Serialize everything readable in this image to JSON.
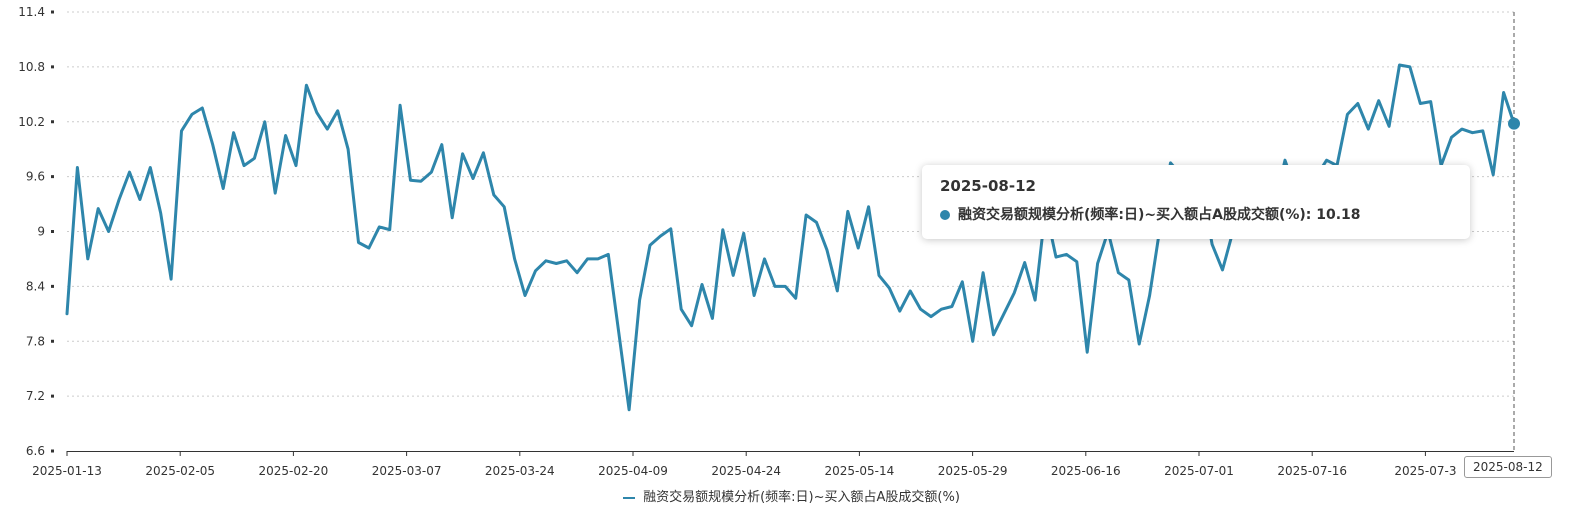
{
  "colors": {
    "series": "#2e86ab",
    "grid": "#cccccc",
    "axis": "#333333"
  },
  "chart_data": {
    "type": "line",
    "title": "",
    "xlabel": "",
    "ylabel": "",
    "ylim": [
      6.6,
      11.4
    ],
    "yticks": [
      "6.6",
      "7.2",
      "7.8",
      "8.4",
      "9",
      "9.6",
      "10.2",
      "10.8",
      "11.4"
    ],
    "xticks": [
      "2025-01-13",
      "2025-02-05",
      "2025-02-20",
      "2025-03-07",
      "2025-03-24",
      "2025-04-09",
      "2025-04-24",
      "2025-05-14",
      "2025-05-29",
      "2025-06-16",
      "2025-07-01",
      "2025-07-16",
      "2025-07-3"
    ],
    "grid": true,
    "legend_position": "bottom",
    "series": [
      {
        "name": "融资交易额规模分析(频率:日)~买入额占A股成交额(%)",
        "values": [
          8.1,
          9.7,
          8.7,
          9.25,
          9.0,
          9.35,
          9.65,
          9.35,
          9.7,
          9.2,
          8.48,
          10.1,
          10.28,
          10.35,
          9.95,
          9.47,
          10.08,
          9.72,
          9.8,
          10.2,
          9.42,
          10.05,
          9.72,
          10.6,
          10.3,
          10.12,
          10.32,
          9.9,
          8.88,
          8.82,
          9.05,
          9.02,
          10.38,
          9.56,
          9.55,
          9.65,
          9.95,
          9.15,
          9.85,
          9.58,
          9.86,
          9.4,
          9.27,
          8.7,
          8.3,
          8.57,
          8.68,
          8.65,
          8.68,
          8.55,
          8.7,
          8.7,
          8.75,
          7.9,
          7.05,
          8.25,
          8.85,
          8.95,
          9.03,
          8.15,
          7.97,
          8.42,
          8.05,
          9.02,
          8.52,
          8.98,
          8.3,
          8.7,
          8.4,
          8.4,
          8.27,
          9.18,
          9.1,
          8.8,
          8.35,
          9.22,
          8.82,
          9.27,
          8.52,
          8.38,
          8.13,
          8.35,
          8.15,
          8.07,
          8.15,
          8.18,
          8.45,
          7.8,
          8.55,
          7.87,
          8.1,
          8.33,
          8.66,
          8.25,
          9.25,
          8.72,
          8.75,
          8.67,
          7.68,
          8.65,
          9.0,
          8.55,
          8.47,
          7.77,
          8.3,
          9.05,
          9.75,
          9.62,
          9.65,
          9.5,
          8.86,
          8.58,
          9.0,
          9.15,
          9.23,
          9.42,
          9.3,
          9.78,
          9.45,
          9.7,
          9.6,
          9.78,
          9.72,
          10.28,
          10.4,
          10.12,
          10.43,
          10.15,
          10.82,
          10.8,
          10.4,
          10.42,
          9.72,
          10.03,
          10.12,
          10.08,
          10.1,
          9.62,
          10.52,
          10.18
        ]
      }
    ],
    "tooltip": {
      "date": "2025-08-12",
      "label": "融资交易额规模分析(频率:日)~买入额占A股成交额(%): 10.18"
    },
    "axis_pointer_label": "2025-08-12"
  }
}
